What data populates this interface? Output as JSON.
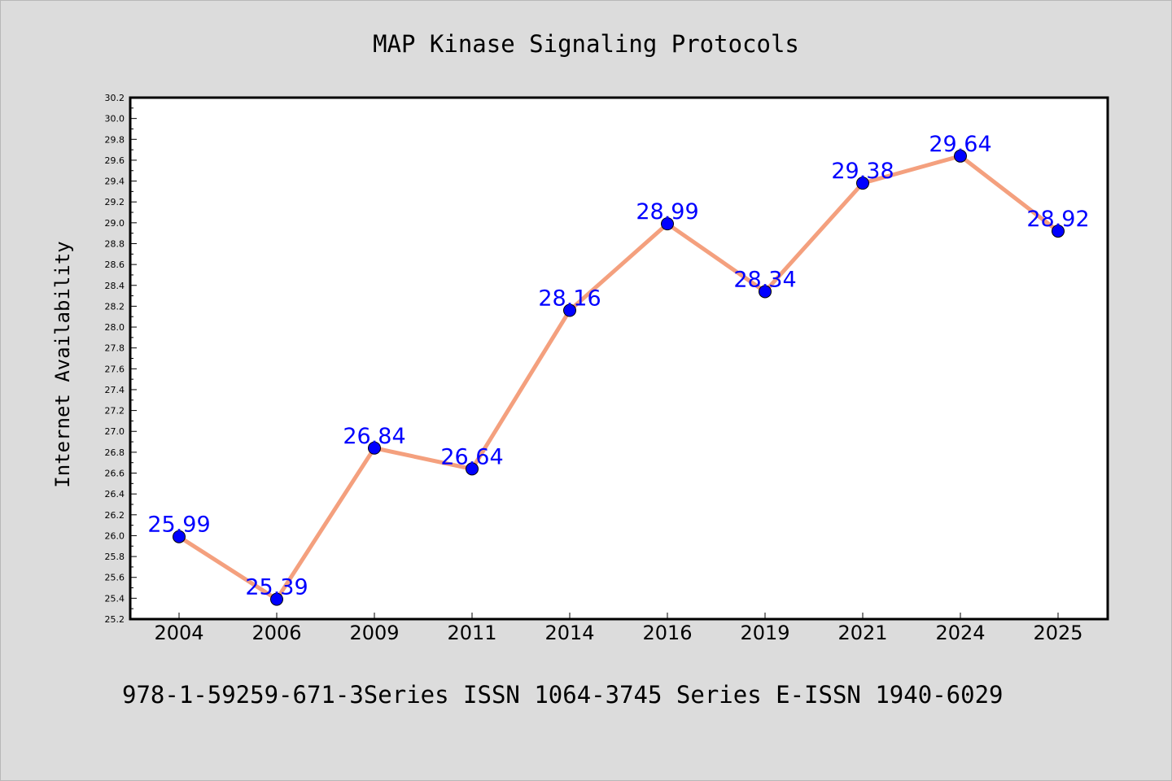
{
  "chart_data": {
    "type": "line",
    "title": "MAP Kinase Signaling Protocols",
    "xlabel": "",
    "ylabel": "Internet Availability",
    "categories": [
      "2004",
      "2006",
      "2009",
      "2011",
      "2014",
      "2016",
      "2019",
      "2021",
      "2024",
      "2025"
    ],
    "series": [
      {
        "values": [
          25.99,
          25.39,
          26.84,
          26.64,
          28.16,
          28.99,
          28.34,
          29.38,
          29.64,
          28.92
        ]
      }
    ],
    "data_labels": [
      "25.99",
      "25.39",
      "26.84",
      "26.64",
      "28.16",
      "28.99",
      "28.34",
      "29.38",
      "29.64",
      "28.92"
    ],
    "ylim": [
      25.2,
      30.2
    ],
    "y_ticks": [
      "25.2",
      "25.4",
      "25.6",
      "25.8",
      "26.0",
      "26.2",
      "26.4",
      "26.6",
      "26.8",
      "27.0",
      "27.2",
      "27.4",
      "27.6",
      "27.8",
      "28.0",
      "28.2",
      "28.4",
      "28.6",
      "28.8",
      "29.0",
      "29.2",
      "29.4",
      "29.6",
      "29.8",
      "30.0",
      "30.2"
    ],
    "grid": false,
    "legend": "none",
    "colors": {
      "line": "#f4a07e",
      "marker": "#0000ff",
      "label": "#0000ff",
      "background": "#dcdcdc",
      "plot_background": "#ffffff"
    }
  },
  "footer": "978-1-59259-671-3Series ISSN 1064-3745 Series E-ISSN 1940-6029"
}
